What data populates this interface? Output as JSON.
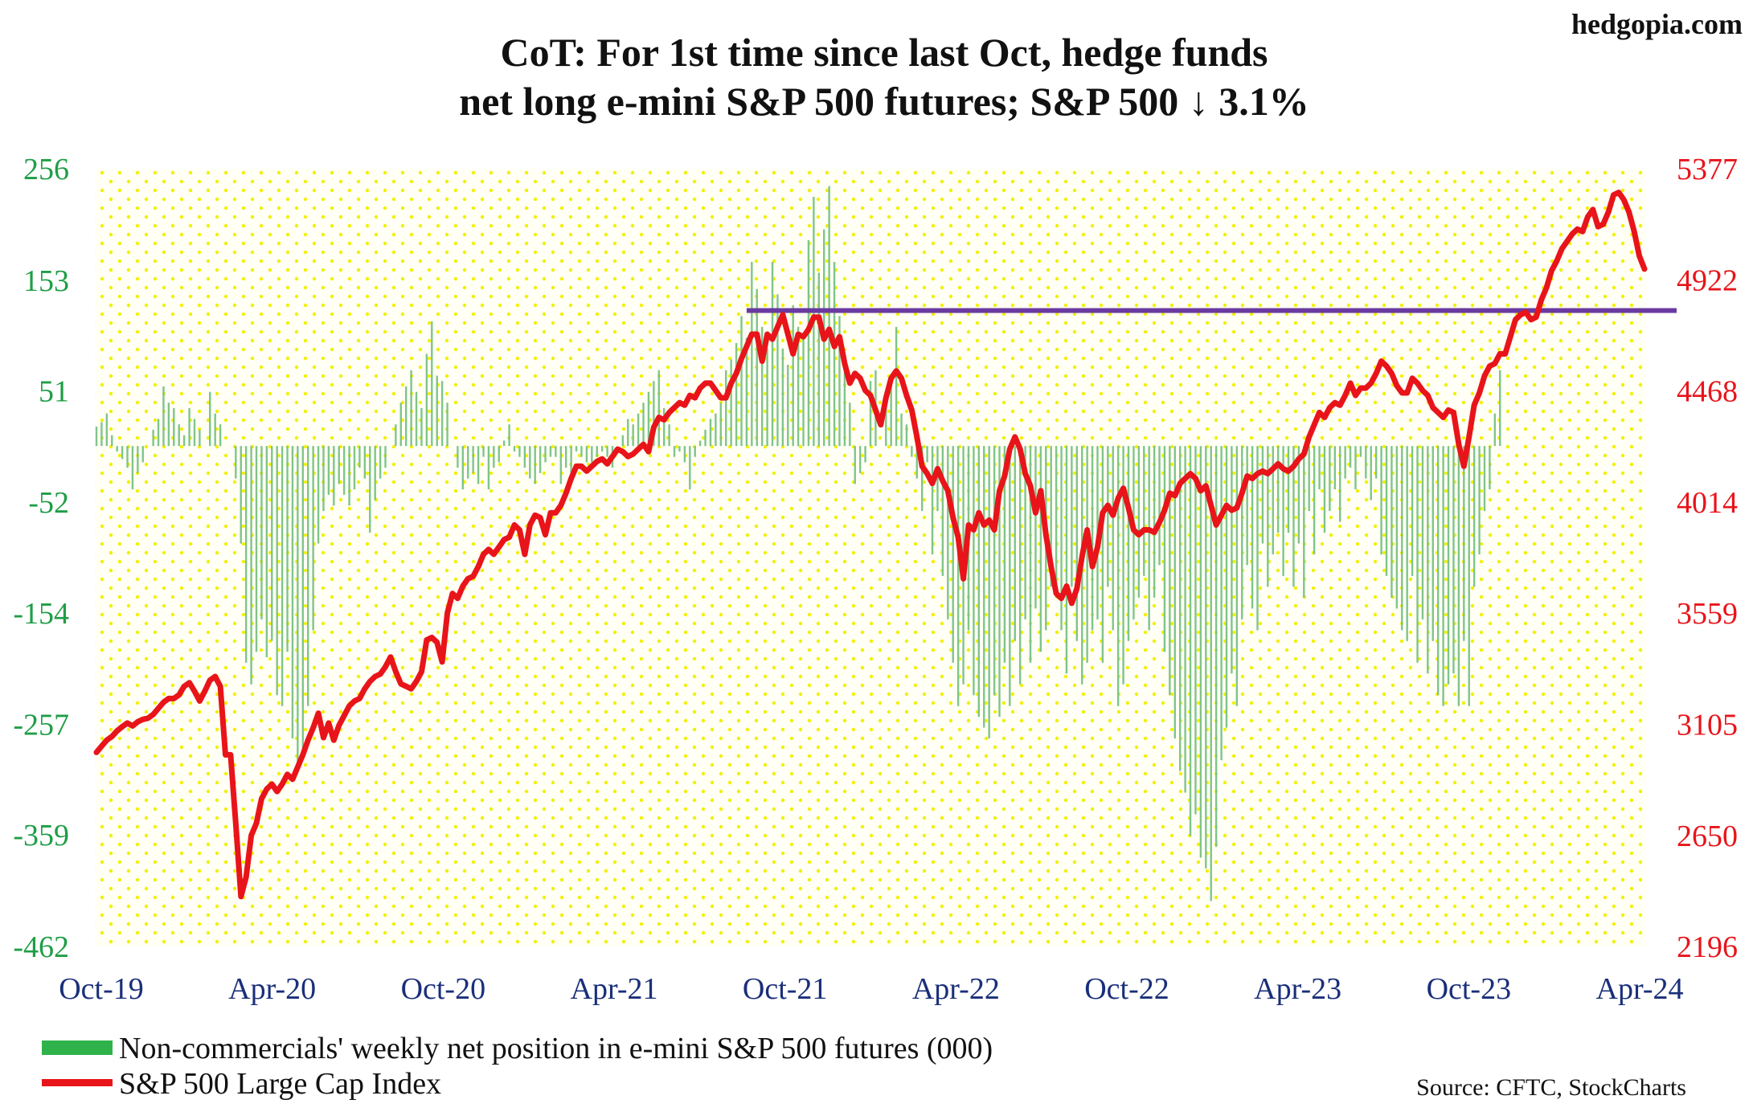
{
  "header": {
    "site": "hedgopia.com",
    "title_line1": "CoT: For 1st time since last Oct, hedge funds",
    "title_line2": "net long e-mini S&P 500 futures; S&P 500 ↓ 3.1%"
  },
  "source": "Source: CFTC, StockCharts",
  "colors": {
    "bars": "#7fc48c",
    "line": "#e8141a",
    "reference_line": "#6a3aa0",
    "plot_background": "#fffff5",
    "dots": "#f2f000",
    "left_axis": "#1f9e46",
    "right_axis": "#e8141a",
    "x_axis": "#1a2f7a"
  },
  "chart_data": {
    "type": "bar+line",
    "x_tick_labels": [
      "Oct-19",
      "Apr-20",
      "Oct-20",
      "Apr-21",
      "Oct-21",
      "Apr-22",
      "Oct-22",
      "Apr-23",
      "Oct-23",
      "Apr-24"
    ],
    "y_left_ticks": [
      256,
      153,
      51,
      -52,
      -154,
      -257,
      -359,
      -462
    ],
    "y_left_range": [
      -462,
      256
    ],
    "y_right_ticks": [
      5377,
      4922,
      4468,
      4014,
      3559,
      3105,
      2650,
      2196
    ],
    "y_right_range": [
      2196,
      5377
    ],
    "reference_line": {
      "value": 4797,
      "start_week": 126,
      "axis": "right"
    },
    "legend": [
      {
        "label": "Non-commercials' weekly net position in e-mini S&P 500 futures (000)",
        "kind": "bar"
      },
      {
        "label": "S&P 500 Large Cap Index",
        "kind": "line"
      }
    ],
    "series": [
      {
        "name": "Non-commercials' weekly net position in e-mini S&P 500 futures (000)",
        "axis": "left",
        "type": "bar",
        "x_start": "Oct-19",
        "frequency": "weekly",
        "values": [
          18,
          22,
          30,
          10,
          -5,
          -12,
          -20,
          -40,
          -25,
          -15,
          0,
          15,
          25,
          55,
          40,
          35,
          20,
          10,
          35,
          25,
          15,
          0,
          50,
          30,
          20,
          0,
          0,
          -30,
          -90,
          -200,
          -220,
          -190,
          -160,
          -195,
          -180,
          -230,
          -240,
          -190,
          -270,
          -300,
          -280,
          -240,
          -170,
          -90,
          -60,
          -45,
          -55,
          -35,
          -45,
          -55,
          -40,
          -20,
          -30,
          -80,
          -50,
          -30,
          -20,
          0,
          20,
          40,
          55,
          70,
          50,
          35,
          85,
          115,
          65,
          60,
          40,
          0,
          -20,
          -40,
          -30,
          -25,
          -35,
          -10,
          -40,
          -20,
          -15,
          5,
          20,
          -5,
          -10,
          -20,
          -30,
          -35,
          -25,
          -15,
          -10,
          -10,
          -35,
          -20,
          -25,
          -5,
          -10,
          -15,
          -15,
          -10,
          -5,
          -10,
          -20,
          0,
          10,
          25,
          20,
          30,
          40,
          50,
          60,
          70,
          35,
          20,
          -10,
          -5,
          -15,
          -40,
          -10,
          5,
          15,
          25,
          30,
          40,
          70,
          80,
          95,
          120,
          100,
          170,
          145,
          110,
          90,
          170,
          140,
          90,
          75,
          130,
          110,
          100,
          190,
          230,
          160,
          200,
          240,
          170,
          120,
          80,
          40,
          -35,
          -25,
          -15,
          60,
          70,
          0,
          50,
          60,
          110,
          30,
          20,
          -10,
          -30,
          -60,
          -15,
          -100,
          -60,
          -120,
          -160,
          -200,
          -240,
          -220,
          -170,
          -230,
          -250,
          -260,
          -270,
          -230,
          -250,
          -200,
          -240,
          -180,
          -220,
          -160,
          -200,
          -150,
          -190,
          -170,
          -130,
          -140,
          -170,
          -210,
          -130,
          -180,
          -220,
          -200,
          -170,
          -160,
          -200,
          -130,
          -170,
          -240,
          -220,
          -180,
          -160,
          -140,
          -120,
          -170,
          -140,
          -110,
          -190,
          -230,
          -270,
          -300,
          -320,
          -360,
          -340,
          -380,
          -390,
          -420,
          -370,
          -290,
          -260,
          -210,
          -240,
          -160,
          -110,
          -150,
          -170,
          -90,
          -130,
          -100,
          -80,
          -120,
          -80,
          -130,
          -90,
          -140,
          -60,
          -100,
          -40,
          -80,
          -60,
          -40,
          -70,
          -30,
          -20,
          -40,
          -10,
          -30,
          -50,
          -30,
          -100,
          -120,
          -140,
          -150,
          -170,
          -180,
          -120,
          -200,
          -160,
          -210,
          -180,
          -230,
          -240,
          -220,
          -210,
          -240,
          -180,
          -240,
          -130,
          -100,
          -60,
          -40,
          30,
          70
        ]
      },
      {
        "name": "S&P 500 Large Cap Index",
        "axis": "right",
        "type": "line",
        "x_start": "Oct-19",
        "frequency": "weekly",
        "values": [
          2990,
          3015,
          3040,
          3055,
          3078,
          3095,
          3110,
          3098,
          3115,
          3125,
          3130,
          3145,
          3170,
          3195,
          3210,
          3210,
          3225,
          3260,
          3275,
          3240,
          3200,
          3240,
          3285,
          3300,
          3260,
          2980,
          2980,
          2700,
          2400,
          2480,
          2650,
          2700,
          2800,
          2840,
          2860,
          2830,
          2860,
          2900,
          2880,
          2930,
          2980,
          3040,
          3090,
          3150,
          3050,
          3110,
          3040,
          3100,
          3140,
          3180,
          3200,
          3210,
          3250,
          3280,
          3300,
          3310,
          3340,
          3380,
          3320,
          3270,
          3260,
          3250,
          3280,
          3320,
          3450,
          3460,
          3440,
          3360,
          3560,
          3640,
          3620,
          3670,
          3700,
          3710,
          3750,
          3800,
          3820,
          3800,
          3830,
          3860,
          3870,
          3920,
          3900,
          3800,
          3920,
          3960,
          3950,
          3880,
          3970,
          3970,
          4000,
          4050,
          4110,
          4160,
          4160,
          4140,
          4160,
          4180,
          4190,
          4170,
          4200,
          4230,
          4220,
          4200,
          4210,
          4230,
          4250,
          4220,
          4320,
          4360,
          4350,
          4380,
          4400,
          4420,
          4410,
          4450,
          4440,
          4480,
          4500,
          4500,
          4470,
          4440,
          4440,
          4500,
          4540,
          4600,
          4650,
          4700,
          4700,
          4590,
          4700,
          4680,
          4730,
          4780,
          4700,
          4620,
          4700,
          4690,
          4720,
          4770,
          4770,
          4680,
          4720,
          4650,
          4690,
          4580,
          4500,
          4540,
          4520,
          4470,
          4450,
          4390,
          4330,
          4440,
          4520,
          4550,
          4520,
          4450,
          4390,
          4280,
          4160,
          4130,
          4090,
          4150,
          4100,
          4060,
          3950,
          3870,
          3700,
          3920,
          3900,
          3970,
          3920,
          3940,
          3900,
          4060,
          4120,
          4230,
          4280,
          4230,
          4130,
          4080,
          3970,
          4060,
          3880,
          3750,
          3640,
          3620,
          3670,
          3600,
          3660,
          3790,
          3900,
          3750,
          3830,
          3970,
          4000,
          3960,
          4030,
          4070,
          3990,
          3900,
          3880,
          3900,
          3900,
          3890,
          3930,
          3980,
          4050,
          4040,
          4090,
          4110,
          4130,
          4110,
          4060,
          4080,
          4000,
          3920,
          3960,
          4000,
          3980,
          3990,
          4050,
          4120,
          4110,
          4130,
          4140,
          4130,
          4150,
          4170,
          4150,
          4140,
          4160,
          4190,
          4210,
          4280,
          4330,
          4380,
          4360,
          4400,
          4420,
          4410,
          4450,
          4500,
          4450,
          4480,
          4480,
          4500,
          4540,
          4590,
          4570,
          4540,
          4490,
          4460,
          4460,
          4520,
          4500,
          4470,
          4450,
          4400,
          4380,
          4360,
          4390,
          4380,
          4250,
          4160,
          4280,
          4410,
          4460,
          4530,
          4570,
          4580,
          4620,
          4620,
          4690,
          4760,
          4780,
          4790,
          4760,
          4770,
          4840,
          4890,
          4960,
          5000,
          5050,
          5080,
          5110,
          5130,
          5120,
          5180,
          5210,
          5140,
          5150,
          5200,
          5270,
          5280,
          5250,
          5200,
          5120,
          5020,
          4967
        ]
      }
    ]
  }
}
